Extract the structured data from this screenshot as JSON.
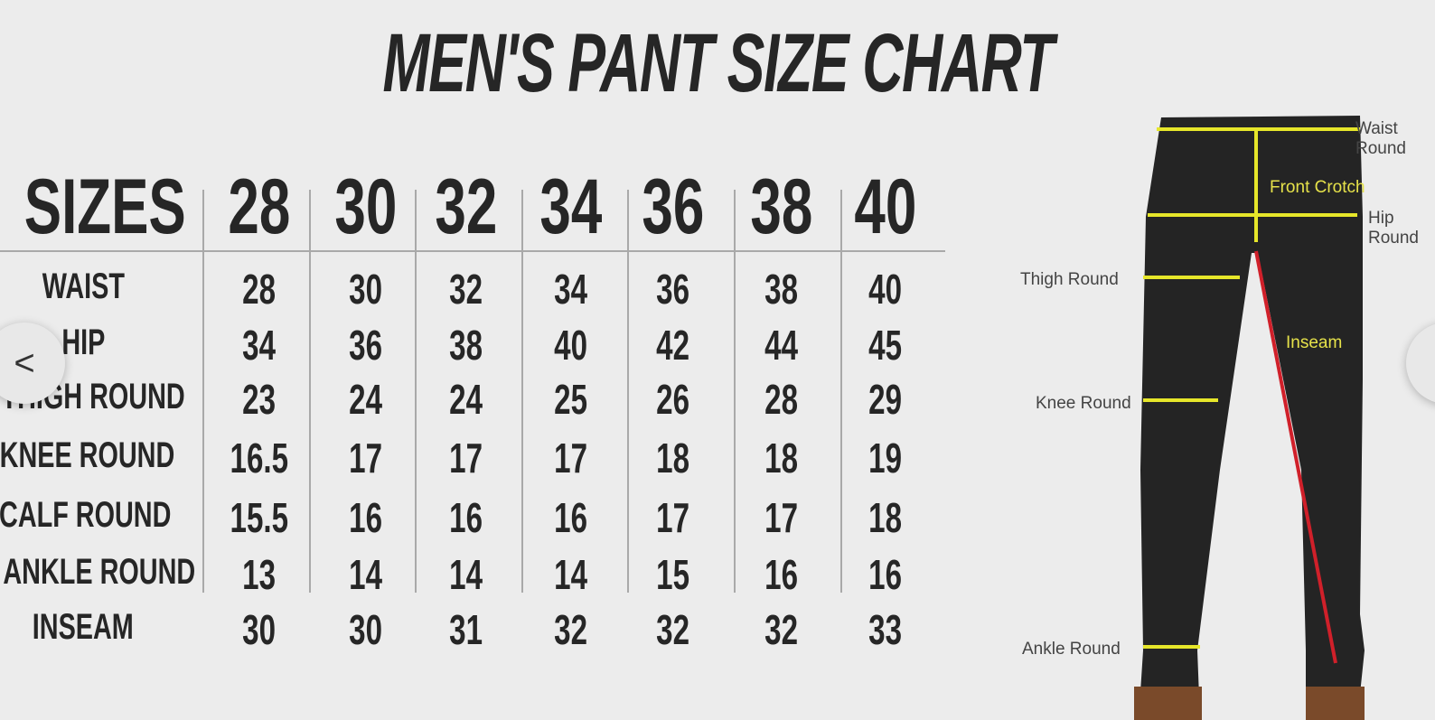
{
  "title": "MEN'S PANT SIZE CHART",
  "table": {
    "header_label": "SIZES",
    "sizes": [
      "28",
      "30",
      "32",
      "34",
      "36",
      "38",
      "40"
    ],
    "rows": [
      {
        "label": "WAIST",
        "values": [
          "28",
          "30",
          "32",
          "34",
          "36",
          "38",
          "40"
        ]
      },
      {
        "label": "HIP",
        "values": [
          "34",
          "36",
          "38",
          "40",
          "42",
          "44",
          "45"
        ]
      },
      {
        "label": "THIGH ROUND",
        "values": [
          "23",
          "24",
          "24",
          "25",
          "26",
          "28",
          "29"
        ]
      },
      {
        "label": "KNEE ROUND",
        "values": [
          "16.5",
          "17",
          "17",
          "17",
          "18",
          "18",
          "19"
        ]
      },
      {
        "label": "CALF ROUND",
        "values": [
          "15.5",
          "16",
          "16",
          "16",
          "17",
          "17",
          "18"
        ]
      },
      {
        "label": "ANKLE ROUND",
        "values": [
          "13",
          "14",
          "14",
          "14",
          "15",
          "16",
          "16"
        ]
      },
      {
        "label": "INSEAM",
        "values": [
          "30",
          "30",
          "31",
          "32",
          "32",
          "32",
          "33"
        ]
      }
    ]
  },
  "diagram": {
    "waist": "Waist Round",
    "front_crotch": "Front Crotch",
    "hip": "Hip Round",
    "thigh": "Thigh Round",
    "inseam": "Inseam",
    "knee": "Knee Round",
    "ankle": "Ankle Round"
  },
  "carousel": {
    "prev_icon": "chevron-left-icon",
    "next_icon": "chevron-right-icon",
    "prev": "<",
    "next": ">"
  },
  "colors": {
    "measure_line": "#e6e62a",
    "inseam_line": "#d0202a",
    "text": "#262626"
  }
}
